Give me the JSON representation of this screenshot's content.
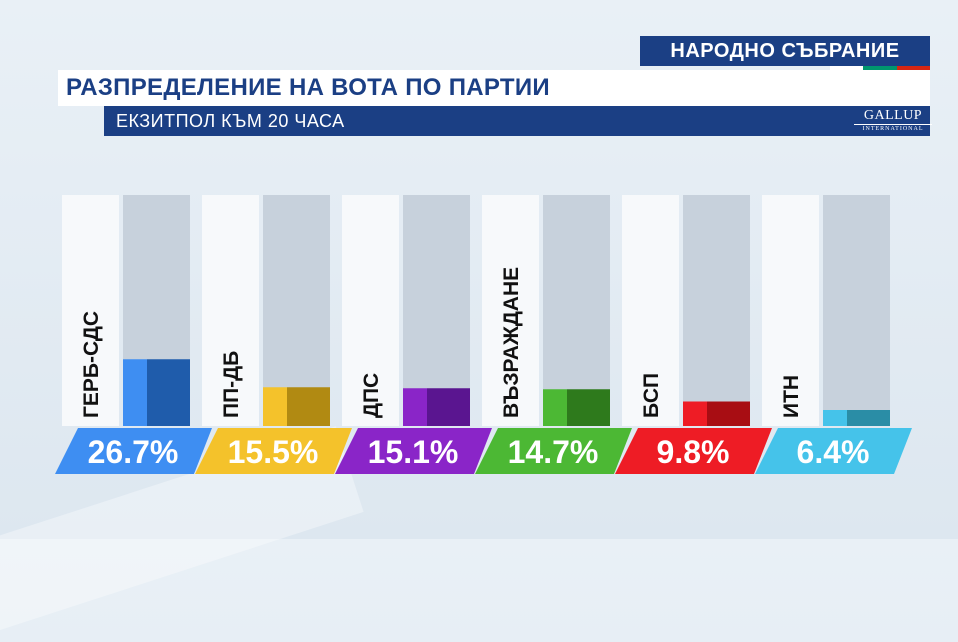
{
  "header": {
    "tag": "НАРОДНО СЪБРАНИЕ",
    "title": "РАЗПРЕДЕЛЕНИЕ НА ВОТА ПО ПАРТИИ",
    "subtitle": "ЕКЗИТПОЛ КЪМ 20 ЧАСА",
    "logo_main": "GALLUP",
    "logo_sub": "INTERNATIONAL"
  },
  "flag_colors": [
    "#ffffff",
    "#00966e",
    "#d62612"
  ],
  "chart_data": {
    "type": "bar",
    "title": "РАЗПРЕДЕЛЕНИЕ НА ВОТА ПО ПАРТИИ",
    "subtitle": "ЕКЗИТПОЛ КЪМ 20 ЧАСА",
    "unit": "%",
    "ylim": [
      0,
      100
    ],
    "grid": false,
    "categories": [
      "ГЕРБ-СДС",
      "ПП-ДБ",
      "ДПС",
      "ВЪЗРАЖДАНЕ",
      "БСП",
      "ИТН"
    ],
    "values": [
      26.7,
      15.5,
      15.1,
      14.7,
      9.8,
      6.4
    ],
    "labels": [
      "26.7%",
      "15.5%",
      "15.1%",
      "14.7%",
      "9.8%",
      "6.4%"
    ],
    "colors": [
      "#3e8ef2",
      "#f4c22b",
      "#8a25c8",
      "#4cb834",
      "#ee1c25",
      "#45c3ea"
    ],
    "dark_colors": [
      "#1f5cab",
      "#b18a12",
      "#5a1590",
      "#2e7a1c",
      "#a80d13",
      "#2a8da6"
    ]
  }
}
